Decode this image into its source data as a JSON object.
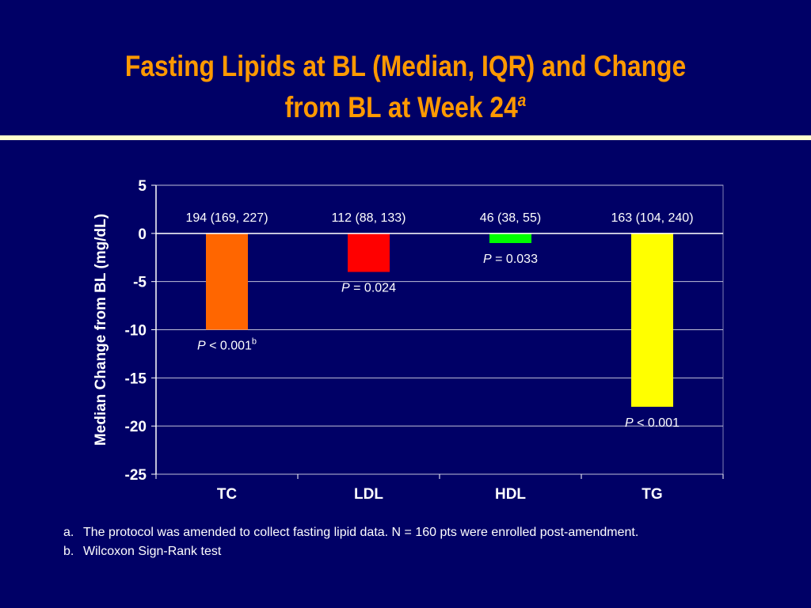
{
  "slide": {
    "title_line1": "Fasting Lipids at BL (Median, IQR) and Change",
    "title_line2": "from BL at Week 24",
    "title_sup": "a"
  },
  "colors": {
    "background": "#000066",
    "title": "#ff9900",
    "rule": "#ffffcc",
    "text": "#ffffff"
  },
  "chart_data": {
    "type": "bar",
    "title": "",
    "xlabel": "",
    "ylabel": "Median Change from BL (mg/dL)",
    "ylim": [
      -25,
      5
    ],
    "yticks": [
      5,
      0,
      -5,
      -10,
      -15,
      -20,
      -25
    ],
    "grid": true,
    "categories": [
      "TC",
      "LDL",
      "HDL",
      "TG"
    ],
    "values": [
      -10,
      -4,
      -1,
      -18
    ],
    "bar_colors": [
      "#ff6600",
      "#ff0000",
      "#00ff00",
      "#ffff00"
    ],
    "baseline_labels": [
      "194 (169, 227)",
      "112 (88, 133)",
      "46 (38, 55)",
      "163 (104, 240)"
    ],
    "p_values": [
      {
        "p": "P",
        "op": " < 0.001",
        "sup": "b"
      },
      {
        "p": "P",
        "op": " = 0.024",
        "sup": ""
      },
      {
        "p": "P",
        "op": " = 0.033",
        "sup": ""
      },
      {
        "p": "P",
        "op": " < 0.001",
        "sup": ""
      }
    ]
  },
  "footnotes": [
    {
      "letter": "a.",
      "text": "The protocol was amended to collect fasting lipid data.  N = 160  pts were enrolled post-amendment."
    },
    {
      "letter": "b.",
      "text": "Wilcoxon Sign-Rank test"
    }
  ]
}
